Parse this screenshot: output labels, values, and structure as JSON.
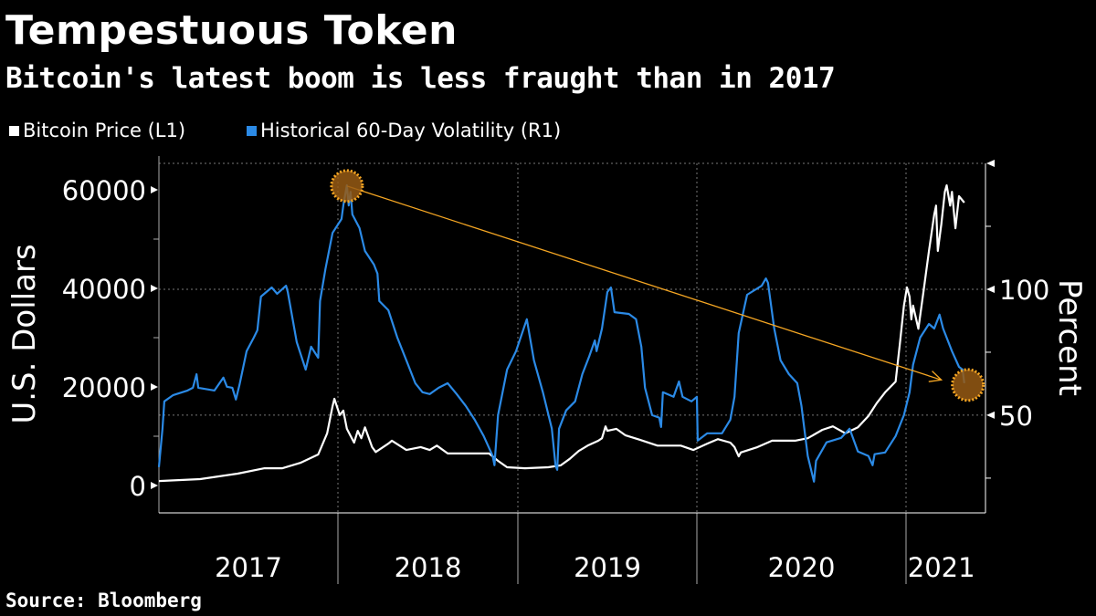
{
  "chart_data": {
    "type": "line",
    "title": "Tempestuous Token",
    "subtitle": "Bitcoin's latest boom is less fraught than in 2017",
    "source": "Source: Bloomberg",
    "ylabel_left": "U.S. Dollars",
    "ylabel_right": "Percent",
    "ylim_left": [
      -5556,
      65370
    ],
    "ylim_right": [
      11.2,
      150
    ],
    "left_ticks": [
      {
        "v": 0,
        "label": "0"
      },
      {
        "v": 20000,
        "label": "20000"
      },
      {
        "v": 40000,
        "label": "40000"
      },
      {
        "v": 60000,
        "label": "60000"
      }
    ],
    "left_minor_ticks": [
      10000,
      30000,
      50000
    ],
    "right_ticks": [
      {
        "v": 50,
        "label": "50"
      },
      {
        "v": 100,
        "label": "100"
      }
    ],
    "right_minor_ticks": [
      25,
      75,
      125
    ],
    "right_top_arrow": 150,
    "x_labels": [
      {
        "x": 2017.5,
        "label": "2017"
      },
      {
        "x": 2018.5,
        "label": "2018"
      },
      {
        "x": 2019.5,
        "label": "2019"
      },
      {
        "x": 2020.5,
        "label": "2020"
      },
      {
        "x": 2021.2,
        "label": "2021"
      }
    ],
    "x_dividers": [
      2018,
      2019,
      2020,
      2021
    ],
    "hgrid_right": [
      50,
      100,
      150
    ],
    "legend_placement": "top-left",
    "series": [
      {
        "name": "Bitcoin Price (L1)",
        "axis": "left",
        "color": "#ffffff",
        "points": [
          [
            2017.0,
            900
          ],
          [
            2017.23,
            1300
          ],
          [
            2017.44,
            2400
          ],
          [
            2017.59,
            3500
          ],
          [
            2017.69,
            3500
          ],
          [
            2017.79,
            4600
          ],
          [
            2017.89,
            6300
          ],
          [
            2017.94,
            10600
          ],
          [
            2017.97,
            16100
          ],
          [
            2017.98,
            17600
          ],
          [
            2018.01,
            14300
          ],
          [
            2018.03,
            15200
          ],
          [
            2018.05,
            11500
          ],
          [
            2018.09,
            8700
          ],
          [
            2018.11,
            11100
          ],
          [
            2018.13,
            9600
          ],
          [
            2018.15,
            11800
          ],
          [
            2018.19,
            7800
          ],
          [
            2018.21,
            6800
          ],
          [
            2018.28,
            8500
          ],
          [
            2018.3,
            9100
          ],
          [
            2018.38,
            7200
          ],
          [
            2018.46,
            7800
          ],
          [
            2018.51,
            7200
          ],
          [
            2018.55,
            8100
          ],
          [
            2018.61,
            6500
          ],
          [
            2018.71,
            6500
          ],
          [
            2018.84,
            6500
          ],
          [
            2018.89,
            5000
          ],
          [
            2018.94,
            3700
          ],
          [
            2019.04,
            3500
          ],
          [
            2019.17,
            3700
          ],
          [
            2019.24,
            4100
          ],
          [
            2019.29,
            5400
          ],
          [
            2019.34,
            7000
          ],
          [
            2019.39,
            8100
          ],
          [
            2019.45,
            9100
          ],
          [
            2019.47,
            9600
          ],
          [
            2019.49,
            12000
          ],
          [
            2019.5,
            11100
          ],
          [
            2019.55,
            11500
          ],
          [
            2019.6,
            10200
          ],
          [
            2019.68,
            9300
          ],
          [
            2019.78,
            8100
          ],
          [
            2019.91,
            8100
          ],
          [
            2019.98,
            7200
          ],
          [
            2020.05,
            8500
          ],
          [
            2020.1,
            9400
          ],
          [
            2020.16,
            8700
          ],
          [
            2020.18,
            7800
          ],
          [
            2020.2,
            5900
          ],
          [
            2020.21,
            6700
          ],
          [
            2020.29,
            7800
          ],
          [
            2020.36,
            9100
          ],
          [
            2020.47,
            9100
          ],
          [
            2020.53,
            9600
          ],
          [
            2020.6,
            11300
          ],
          [
            2020.65,
            12000
          ],
          [
            2020.71,
            10600
          ],
          [
            2020.77,
            11800
          ],
          [
            2020.82,
            14100
          ],
          [
            2020.86,
            16700
          ],
          [
            2020.9,
            18900
          ],
          [
            2020.95,
            21100
          ],
          [
            2020.97,
            28500
          ],
          [
            2020.99,
            36500
          ],
          [
            2021.005,
            40200
          ],
          [
            2021.02,
            38300
          ],
          [
            2021.03,
            33700
          ],
          [
            2021.04,
            36500
          ],
          [
            2021.07,
            31800
          ],
          [
            2021.1,
            39600
          ],
          [
            2021.13,
            47600
          ],
          [
            2021.16,
            55000
          ],
          [
            2021.17,
            56800
          ],
          [
            2021.18,
            47600
          ],
          [
            2021.2,
            53100
          ],
          [
            2021.22,
            59600
          ],
          [
            2021.23,
            60900
          ],
          [
            2021.25,
            56800
          ],
          [
            2021.26,
            59600
          ],
          [
            2021.28,
            52200
          ],
          [
            2021.3,
            58700
          ],
          [
            2021.33,
            57400
          ]
        ]
      },
      {
        "name": "Historical 60-Day Volatility (R1)",
        "axis": "right",
        "color": "#2b8ae6",
        "points": [
          [
            2017.0,
            29.4
          ],
          [
            2017.02,
            44.6
          ],
          [
            2017.03,
            55.5
          ],
          [
            2017.08,
            58.0
          ],
          [
            2017.16,
            59.8
          ],
          [
            2017.19,
            60.9
          ],
          [
            2017.21,
            66.3
          ],
          [
            2017.22,
            60.9
          ],
          [
            2017.31,
            59.8
          ],
          [
            2017.36,
            64.9
          ],
          [
            2017.38,
            61.3
          ],
          [
            2017.41,
            60.9
          ],
          [
            2017.43,
            56.2
          ],
          [
            2017.45,
            62.0
          ],
          [
            2017.49,
            75.4
          ],
          [
            2017.53,
            80.8
          ],
          [
            2017.55,
            83.7
          ],
          [
            2017.57,
            97.1
          ],
          [
            2017.63,
            100.7
          ],
          [
            2017.66,
            98.2
          ],
          [
            2017.71,
            101.4
          ],
          [
            2017.72,
            98.9
          ],
          [
            2017.77,
            79.0
          ],
          [
            2017.82,
            68.1
          ],
          [
            2017.85,
            77.2
          ],
          [
            2017.89,
            72.8
          ],
          [
            2017.9,
            95.3
          ],
          [
            2017.93,
            108.0
          ],
          [
            2017.97,
            122.4
          ],
          [
            2018.02,
            127.9
          ],
          [
            2018.03,
            133.3
          ],
          [
            2018.05,
            141.3
          ],
          [
            2018.06,
            133.3
          ],
          [
            2018.07,
            138.7
          ],
          [
            2018.08,
            129.7
          ],
          [
            2018.12,
            124.3
          ],
          [
            2018.15,
            115.2
          ],
          [
            2018.2,
            109.8
          ],
          [
            2018.22,
            106.2
          ],
          [
            2018.23,
            95.3
          ],
          [
            2018.28,
            91.7
          ],
          [
            2018.33,
            80.8
          ],
          [
            2018.38,
            71.8
          ],
          [
            2018.43,
            62.7
          ],
          [
            2018.47,
            59.1
          ],
          [
            2018.51,
            58.4
          ],
          [
            2018.56,
            60.9
          ],
          [
            2018.61,
            62.7
          ],
          [
            2018.66,
            58.4
          ],
          [
            2018.71,
            53.7
          ],
          [
            2018.76,
            48.2
          ],
          [
            2018.81,
            41.7
          ],
          [
            2018.86,
            33.8
          ],
          [
            2018.87,
            30.1
          ],
          [
            2018.89,
            50.0
          ],
          [
            2018.94,
            68.1
          ],
          [
            2018.99,
            75.4
          ],
          [
            2019.05,
            88.1
          ],
          [
            2019.09,
            71.8
          ],
          [
            2019.14,
            59.1
          ],
          [
            2019.19,
            44.6
          ],
          [
            2019.21,
            30.1
          ],
          [
            2019.22,
            28.3
          ],
          [
            2019.23,
            44.6
          ],
          [
            2019.27,
            51.9
          ],
          [
            2019.32,
            55.5
          ],
          [
            2019.36,
            66.3
          ],
          [
            2019.4,
            73.6
          ],
          [
            2019.43,
            79.7
          ],
          [
            2019.44,
            75.4
          ],
          [
            2019.47,
            84.4
          ],
          [
            2019.5,
            98.9
          ],
          [
            2019.52,
            100.7
          ],
          [
            2019.54,
            90.9
          ],
          [
            2019.62,
            90.2
          ],
          [
            2019.66,
            88.1
          ],
          [
            2019.69,
            77.2
          ],
          [
            2019.71,
            60.9
          ],
          [
            2019.75,
            50.0
          ],
          [
            2019.79,
            49.0
          ],
          [
            2019.8,
            45.3
          ],
          [
            2019.81,
            59.1
          ],
          [
            2019.87,
            57.3
          ],
          [
            2019.9,
            63.4
          ],
          [
            2019.92,
            57.3
          ],
          [
            2019.97,
            55.5
          ],
          [
            2020.0,
            57.3
          ],
          [
            2020.004,
            39.9
          ],
          [
            2020.05,
            42.8
          ],
          [
            2020.12,
            42.8
          ],
          [
            2020.16,
            48.2
          ],
          [
            2020.18,
            57.3
          ],
          [
            2020.2,
            82.6
          ],
          [
            2020.24,
            97.8
          ],
          [
            2020.31,
            101.4
          ],
          [
            2020.33,
            104.3
          ],
          [
            2020.34,
            102.5
          ],
          [
            2020.37,
            84.4
          ],
          [
            2020.4,
            71.8
          ],
          [
            2020.44,
            66.3
          ],
          [
            2020.48,
            62.7
          ],
          [
            2020.5,
            53.7
          ],
          [
            2020.53,
            33.8
          ],
          [
            2020.56,
            23.6
          ],
          [
            2020.57,
            31.9
          ],
          [
            2020.62,
            39.2
          ],
          [
            2020.69,
            41.0
          ],
          [
            2020.73,
            44.6
          ],
          [
            2020.77,
            35.6
          ],
          [
            2020.82,
            33.8
          ],
          [
            2020.84,
            30.1
          ],
          [
            2020.85,
            34.5
          ],
          [
            2020.9,
            35.2
          ],
          [
            2020.95,
            41.7
          ],
          [
            2020.99,
            50.0
          ],
          [
            2021.02,
            59.1
          ],
          [
            2021.04,
            70.0
          ],
          [
            2021.08,
            80.8
          ],
          [
            2021.13,
            86.2
          ],
          [
            2021.16,
            84.4
          ],
          [
            2021.19,
            89.9
          ],
          [
            2021.21,
            84.4
          ],
          [
            2021.26,
            75.4
          ],
          [
            2021.3,
            69.2
          ],
          [
            2021.32,
            68.1
          ],
          [
            2021.33,
            62.7
          ]
        ]
      }
    ],
    "annotations": {
      "highlight_color": "#f5a623",
      "circles": [
        {
          "x": 2018.05,
          "y": 141
        },
        {
          "x": 2021.35,
          "y": 62
        }
      ],
      "arrow": {
        "from": [
          2018.05,
          141
        ],
        "to": [
          2021.2,
          64
        ]
      }
    }
  }
}
